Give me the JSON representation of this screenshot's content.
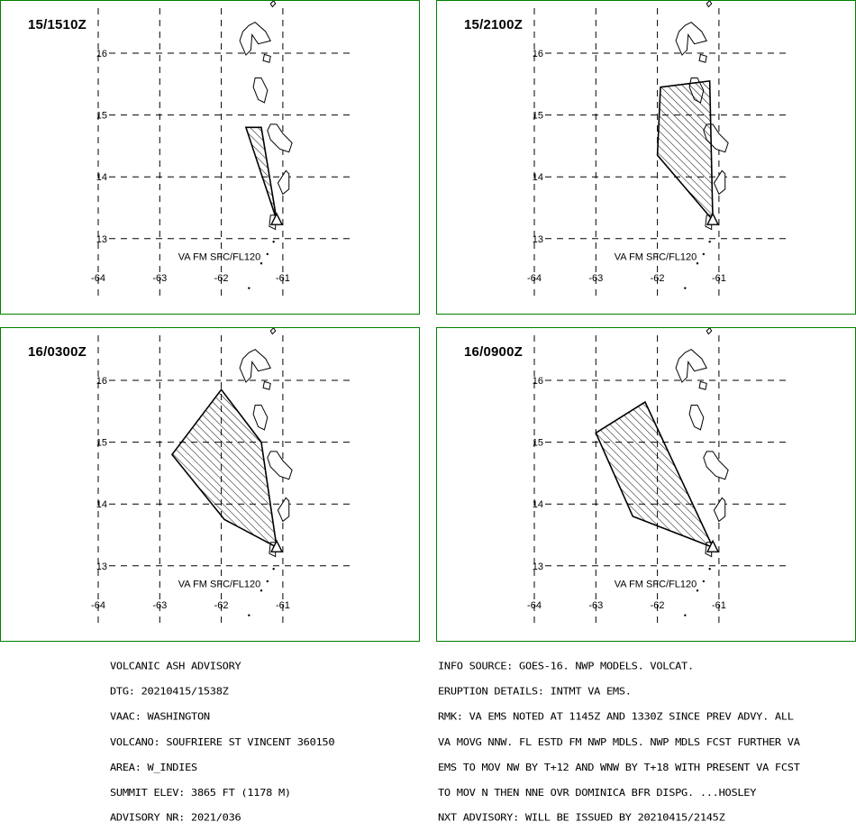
{
  "panels": [
    {
      "label": "15/1510Z",
      "va_label": "VA FM SFC/FL120",
      "ash_polygon": [
        [
          -61.1,
          13.3
        ],
        [
          -61.6,
          14.8
        ],
        [
          -61.35,
          14.8
        ]
      ]
    },
    {
      "label": "15/2100Z",
      "va_label": "VA FM SFC/FL120",
      "ash_polygon": [
        [
          -61.1,
          13.3
        ],
        [
          -62.0,
          14.35
        ],
        [
          -61.95,
          15.45
        ],
        [
          -61.15,
          15.55
        ]
      ]
    },
    {
      "label": "16/0300Z",
      "va_label": "VA FM SFC/FL120",
      "ash_polygon": [
        [
          -61.1,
          13.3
        ],
        [
          -61.95,
          13.75
        ],
        [
          -62.8,
          14.8
        ],
        [
          -62.0,
          15.85
        ],
        [
          -61.35,
          15.0
        ]
      ]
    },
    {
      "label": "16/0900Z",
      "va_label": "VA FM SFC/FL120",
      "ash_polygon": [
        [
          -61.1,
          13.3
        ],
        [
          -62.4,
          13.8
        ],
        [
          -63.0,
          15.15
        ],
        [
          -62.2,
          15.65
        ]
      ]
    }
  ],
  "axes": {
    "lon_ticks": [
      "-64",
      "-63",
      "-62",
      "-61"
    ],
    "lat_ticks": [
      "16",
      "15",
      "14",
      "13"
    ],
    "lon_values": [
      -64,
      -63,
      -62,
      -61
    ],
    "lat_values": [
      16,
      15,
      14,
      13
    ]
  },
  "volcano": {
    "lon": -61.1,
    "lat": 13.3
  },
  "advisory_left": [
    "VOLCANIC ASH ADVISORY",
    "DTG: 20210415/1538Z",
    "VAAC: WASHINGTON",
    "VOLCANO: SOUFRIERE ST VINCENT 360150",
    "AREA: W_INDIES",
    "SUMMIT ELEV: 3865 FT (1178 M)",
    "ADVISORY NR: 2021/036"
  ],
  "advisory_right": [
    "INFO SOURCE: GOES-16. NWP MODELS. VOLCAT.",
    "ERUPTION DETAILS: INTMT VA EMS.",
    "RMK: VA EMS NOTED AT 1145Z AND 1330Z SINCE PREV ADVY. ALL",
    "VA MOVG NNW. FL ESTD FM NWP MDLS. NWP MDLS FCST FURTHER VA",
    "EMS TO MOV NW BY T+12 AND WNW BY T+18 WITH PRESENT VA FCST",
    "TO MOV N THEN NNE OVR DOMINICA BFR DISPG. ...HOSLEY",
    "NXT ADVISORY: WILL BE ISSUED BY 20210415/2145Z"
  ],
  "colors": {
    "border": "#008000",
    "ink": "#000000"
  }
}
